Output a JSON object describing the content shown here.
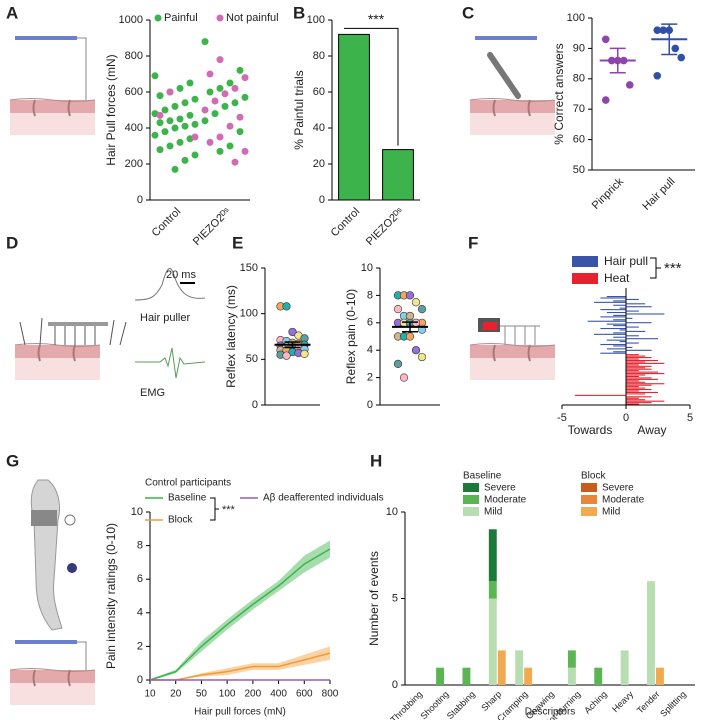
{
  "chart_data": [
    {
      "panel": "A",
      "type": "scatter_strip",
      "ylabel": "Hair Pull forces (mN)",
      "categories": [
        "Control",
        "PIEZO2ᴰˢ"
      ],
      "series": [
        {
          "name": "Painful",
          "color": "#3cb44b",
          "values": [
            [
              690,
              650,
              620,
              600,
              580,
              560,
              540,
              520,
              500,
              480,
              470,
              450,
              440,
              430,
              420,
              410,
              400,
              380,
              360,
              340,
              320,
              300,
              280,
              250,
              220,
              170
            ],
            [
              880,
              720,
              650,
              620,
              600,
              570,
              540,
              520,
              480,
              440,
              380,
              300,
              270
            ]
          ]
        },
        {
          "name": "Not painful",
          "color": "#d16bb4",
          "values": [
            [
              600,
              470,
              350
            ],
            [
              780,
              700,
              680,
              620,
              590,
              550,
              500,
              460,
              410,
              350,
              320,
              270,
              210
            ]
          ]
        }
      ],
      "ylim": [
        0,
        1000
      ],
      "yticks": [
        0,
        200,
        400,
        600,
        800,
        1000
      ]
    },
    {
      "panel": "B",
      "type": "bar",
      "ylabel": "% Painful trials",
      "categories": [
        "Control",
        "PIEZO2ᴰˢ"
      ],
      "values": [
        92,
        28
      ],
      "color": "#3cb44b",
      "annotation": "***",
      "ylim": [
        0,
        100
      ],
      "yticks": [
        0,
        20,
        40,
        60,
        80,
        100
      ]
    },
    {
      "panel": "C",
      "type": "dot_mean",
      "ylabel": "% Correct answers",
      "groups": [
        {
          "name": "Pinprick",
          "color": "#8e44ad",
          "values": [
            93,
            86,
            86,
            86,
            78,
            73
          ],
          "mean": 86,
          "error": 4
        },
        {
          "name": "Hair pull",
          "color": "#2f4fa8",
          "values": [
            96,
            96,
            96,
            90,
            87,
            81
          ],
          "mean": 93,
          "error": 5
        }
      ],
      "ylim": [
        50,
        100
      ],
      "yticks": [
        50,
        60,
        70,
        80,
        90,
        100
      ]
    },
    {
      "panel": "E",
      "type": "dot_mean",
      "ylabel": "Reflex latency (ms)",
      "groups": [
        {
          "colors": [
            "#f4a460",
            "#20b2aa",
            "#9370db",
            "#f0e68c",
            "#5f9ea0",
            "#ffb6c1",
            "#87ceeb",
            "#d2b48c"
          ],
          "values": [
            108,
            108,
            80,
            76,
            73,
            71,
            70,
            68,
            67,
            66,
            65,
            64,
            63,
            62,
            61,
            60,
            60,
            58,
            57,
            56,
            55,
            54
          ],
          "mean": 66,
          "error": 3
        }
      ],
      "ylim": [
        0,
        150
      ],
      "yticks": [
        0,
        50,
        100,
        150
      ]
    },
    {
      "type": "dot_mean",
      "ylabel": "Reflex pain (0-10)",
      "groups": [
        {
          "colors": [
            "#20b2aa",
            "#f4a460",
            "#9370db",
            "#f0e68c",
            "#5f9ea0",
            "#ffb6c1",
            "#87ceeb",
            "#d2b48c"
          ],
          "values": [
            8,
            8,
            8,
            7.5,
            7,
            7,
            6.5,
            6.5,
            6,
            6,
            6,
            6,
            6,
            6,
            5.5,
            5,
            5,
            5,
            4,
            3.5,
            3,
            2
          ],
          "mean": 5.7,
          "error": 0.35
        }
      ],
      "ylim": [
        0,
        10
      ],
      "yticks": [
        0,
        2,
        4,
        6,
        8,
        10
      ]
    },
    {
      "panel": "F",
      "type": "barcode",
      "annotation": "***",
      "xlabel_left": "Towards",
      "xlabel_right": "Away",
      "series": [
        {
          "name": "Hair pull",
          "color": "#3a55a8",
          "values": [
            -1.5,
            -2,
            1,
            -1,
            -2.5,
            1.5,
            -1,
            2,
            -0.5,
            -2,
            1,
            -1.5,
            3,
            -1,
            -2,
            0.5,
            -1,
            -3,
            2,
            -1.5,
            -1,
            1,
            -2,
            -0.5,
            1.5,
            -1,
            -2.5,
            1,
            -1,
            2.5,
            -1.5,
            -0.5,
            1,
            -2,
            -1,
            0.5,
            -1.5,
            2,
            -1,
            -2
          ]
        },
        {
          "name": "Heat",
          "color": "#e8212f",
          "values": [
            1,
            1.5,
            2,
            1,
            2.5,
            1.5,
            3,
            1,
            2,
            1.5,
            2,
            1,
            2.5,
            3,
            1.5,
            1,
            2,
            2.5,
            1,
            1.5,
            3,
            2,
            1,
            1.5,
            2,
            1,
            2.5,
            1.5,
            -4,
            2,
            1,
            1.5,
            3,
            2,
            1
          ]
        }
      ],
      "xlim": [
        -5,
        5
      ],
      "xticks": [
        -5,
        0,
        5
      ]
    },
    {
      "panel": "G",
      "type": "line_band",
      "ylabel": "Pain intensity ratings (0-10)",
      "xlabel": "Hair pull forces (mN)",
      "legend_title": "Control participants",
      "annotation": "***",
      "categories": [
        "10",
        "20",
        "50",
        "100",
        "200",
        "400",
        "600",
        "800"
      ],
      "series": [
        {
          "name": "Baseline",
          "color": "#3cb44b",
          "values": [
            0,
            0.5,
            2,
            3.3,
            4.5,
            5.6,
            6.9,
            7.8
          ],
          "errors": [
            0.05,
            0.1,
            0.3,
            0.3,
            0.3,
            0.3,
            0.5,
            0.5
          ]
        },
        {
          "name": "Block",
          "color": "#f39c34",
          "values": [
            0,
            0,
            0.3,
            0.5,
            0.8,
            0.8,
            1.2,
            1.6
          ],
          "errors": [
            0,
            0,
            0.1,
            0.2,
            0.2,
            0.2,
            0.3,
            0.4
          ]
        },
        {
          "name": "Aβ deafferented individuals",
          "color": "#9b59b6",
          "values": [
            0,
            0,
            0,
            0,
            0,
            0,
            0,
            0
          ],
          "errors": [
            0,
            0,
            0,
            0,
            0,
            0,
            0,
            0
          ]
        }
      ],
      "ylim": [
        0,
        10
      ],
      "yticks": [
        0,
        2,
        4,
        6,
        8,
        10
      ]
    },
    {
      "panel": "H",
      "type": "grouped_stacked",
      "ylabel": "Number of events",
      "xlabel": "Descriptors",
      "categories": [
        "Throbbing",
        "Shooting",
        "Stabbing",
        "Sharp",
        "Cramping",
        "Gnawing",
        "Hot-burning",
        "Aching",
        "Heavy",
        "Tender",
        "Splitting"
      ],
      "groups": [
        {
          "name": "Baseline",
          "series": [
            {
              "name": "Severe",
              "color": "#1a7a3a",
              "values": [
                0,
                0,
                0,
                3,
                0,
                0,
                0,
                0,
                0,
                0,
                0
              ]
            },
            {
              "name": "Moderate",
              "color": "#5ab552",
              "values": [
                0,
                1,
                1,
                1,
                0,
                0,
                1,
                1,
                0,
                0,
                0
              ]
            },
            {
              "name": "Mild",
              "color": "#b7ddb0",
              "values": [
                0,
                0,
                0,
                5,
                2,
                0,
                1,
                0,
                2,
                6,
                0
              ]
            }
          ]
        },
        {
          "name": "Block",
          "series": [
            {
              "name": "Severe",
              "color": "#c45e1a",
              "values": [
                0,
                0,
                0,
                0,
                0,
                0,
                0,
                0,
                0,
                0,
                0
              ]
            },
            {
              "name": "Moderate",
              "color": "#e8873a",
              "values": [
                0,
                0,
                0,
                0,
                0,
                0,
                0,
                0,
                0,
                0,
                0
              ]
            },
            {
              "name": "Mild",
              "color": "#f2a950",
              "values": [
                0,
                0,
                0,
                2,
                1,
                0,
                0,
                0,
                0,
                1,
                0
              ]
            }
          ]
        }
      ],
      "ylim": [
        0,
        10
      ],
      "yticks": [
        0,
        5,
        10
      ]
    }
  ],
  "panel_d": {
    "panel": "D",
    "scale_bar": "20 ms",
    "traces": [
      "Hair puller",
      "EMG"
    ]
  }
}
